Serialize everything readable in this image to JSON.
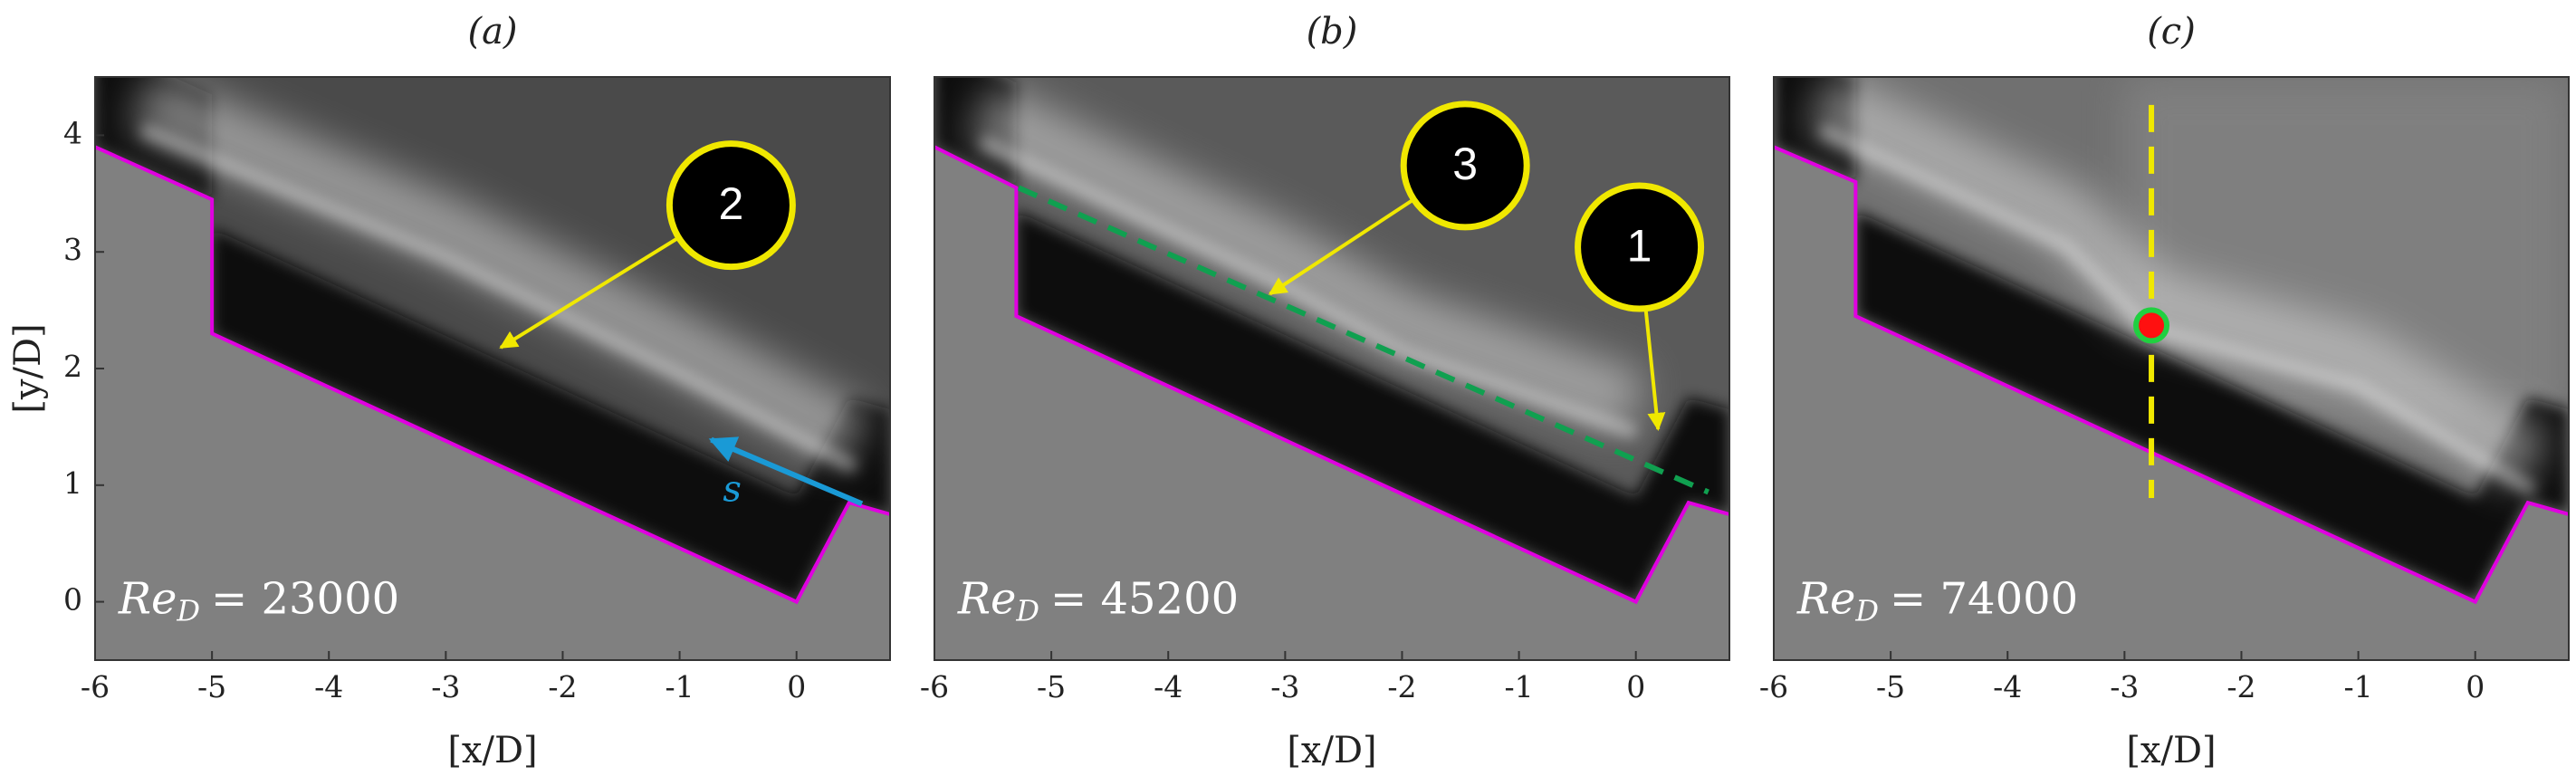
{
  "chart_data": [
    {
      "type": "image",
      "title": "(a)",
      "xlabel": "[x/D]",
      "ylabel": "[y/D]",
      "xlim": [
        -6,
        0.8
      ],
      "ylim": [
        -0.5,
        4.5
      ],
      "xticks": [
        -6,
        -5,
        -4,
        -3,
        -2,
        -1,
        0
      ],
      "yticks": [
        0,
        1,
        2,
        3,
        4
      ],
      "annotation": {
        "lhs": "Re",
        "sub": "D",
        "rhs": "= 23000"
      },
      "callouts": [
        "2"
      ],
      "arrow_label": "s"
    },
    {
      "type": "image",
      "title": "(b)",
      "xlabel": "[x/D]",
      "xlim": [
        -6,
        0.8
      ],
      "ylim": [
        -0.5,
        4.5
      ],
      "xticks": [
        -6,
        -5,
        -4,
        -3,
        -2,
        -1,
        0
      ],
      "annotation": {
        "lhs": "Re",
        "sub": "D",
        "rhs": "= 45200"
      },
      "callouts": [
        "3",
        "1"
      ]
    },
    {
      "type": "image",
      "title": "(c)",
      "xlabel": "[x/D]",
      "xlim": [
        -6,
        0.8
      ],
      "ylim": [
        -0.5,
        4.5
      ],
      "xticks": [
        -6,
        -5,
        -4,
        -3,
        -2,
        -1,
        0
      ],
      "annotation": {
        "lhs": "Re",
        "sub": "D",
        "rhs": "= 74000"
      }
    }
  ]
}
